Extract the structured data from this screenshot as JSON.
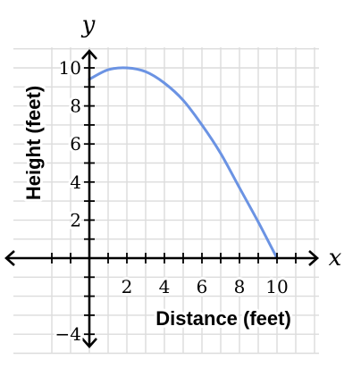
{
  "chart_data": {
    "type": "line",
    "xlabel": "Distance (feet)",
    "ylabel": "Height (feet)",
    "x_var": "x",
    "y_var": "y",
    "xlim": [
      -2,
      12
    ],
    "ylim": [
      -5,
      11
    ],
    "x_ticks": [
      2,
      4,
      6,
      8,
      10
    ],
    "y_ticks": [
      -4,
      2,
      4,
      6,
      8,
      10
    ],
    "x_tick_labels": [
      "2",
      "4",
      "6",
      "8",
      "10"
    ],
    "y_tick_labels": [
      "−4",
      "2",
      "4",
      "6",
      "8",
      "10"
    ],
    "grid": true,
    "series": [
      {
        "x": [
          0,
          1,
          2,
          3,
          4,
          5,
          6,
          7,
          8,
          9,
          10
        ],
        "y": [
          9.4,
          9.9,
          10.0,
          9.8,
          9.2,
          8.3,
          7.0,
          5.5,
          3.7,
          1.9,
          0
        ]
      }
    ],
    "colors": {
      "curve": "#6b93e3",
      "grid": "#dcdcdc",
      "axis": "#000000"
    }
  }
}
